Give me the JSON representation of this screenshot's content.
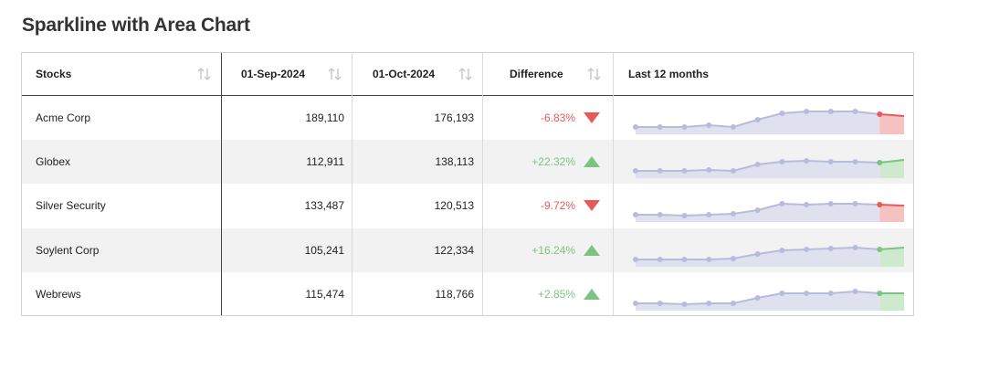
{
  "title": "Sparkline with Area Chart",
  "colors": {
    "positive": "#7bc47f",
    "negative": "#e8595a",
    "sparkline": "#b8bcdc",
    "sparkline_fill": "#dfe1ef",
    "positive_fill": "#cfe9cf",
    "negative_fill": "#f6c1c1",
    "alt_row": "#f2f2f2"
  },
  "headers": {
    "stocks": "Stocks",
    "sep": "01-Sep-2024",
    "oct": "01-Oct-2024",
    "difference": "Difference",
    "last12": "Last 12 months"
  },
  "sort_icon": "sort-arrows-icon",
  "rows": [
    {
      "name": "Acme Corp",
      "sep": "189,110",
      "oct": "176,193",
      "diff": "-6.83%",
      "trend": "down",
      "spark": [
        10,
        10,
        10,
        12,
        10,
        18,
        25,
        27,
        27,
        27,
        24,
        22
      ]
    },
    {
      "name": "Globex",
      "sep": "112,911",
      "oct": "138,113",
      "diff": "+22.32%",
      "trend": "up",
      "spark": [
        10,
        10,
        10,
        11,
        10,
        17,
        20,
        21,
        20,
        20,
        19,
        22
      ]
    },
    {
      "name": "Silver Security",
      "sep": "133,487",
      "oct": "120,513",
      "diff": "-9.72%",
      "trend": "down",
      "spark": [
        10,
        10,
        9,
        10,
        11,
        15,
        22,
        21,
        22,
        22,
        21,
        20
      ]
    },
    {
      "name": "Soylent Corp",
      "sep": "105,241",
      "oct": "122,334",
      "diff": "+16.24%",
      "trend": "up",
      "spark": [
        10,
        10,
        10,
        10,
        11,
        16,
        20,
        21,
        22,
        23,
        21,
        23
      ]
    },
    {
      "name": "Webrews",
      "sep": "115,474",
      "oct": "118,766",
      "diff": "+2.85%",
      "trend": "up",
      "spark": [
        10,
        10,
        9,
        10,
        10,
        16,
        21,
        21,
        21,
        23,
        21,
        21
      ]
    }
  ]
}
